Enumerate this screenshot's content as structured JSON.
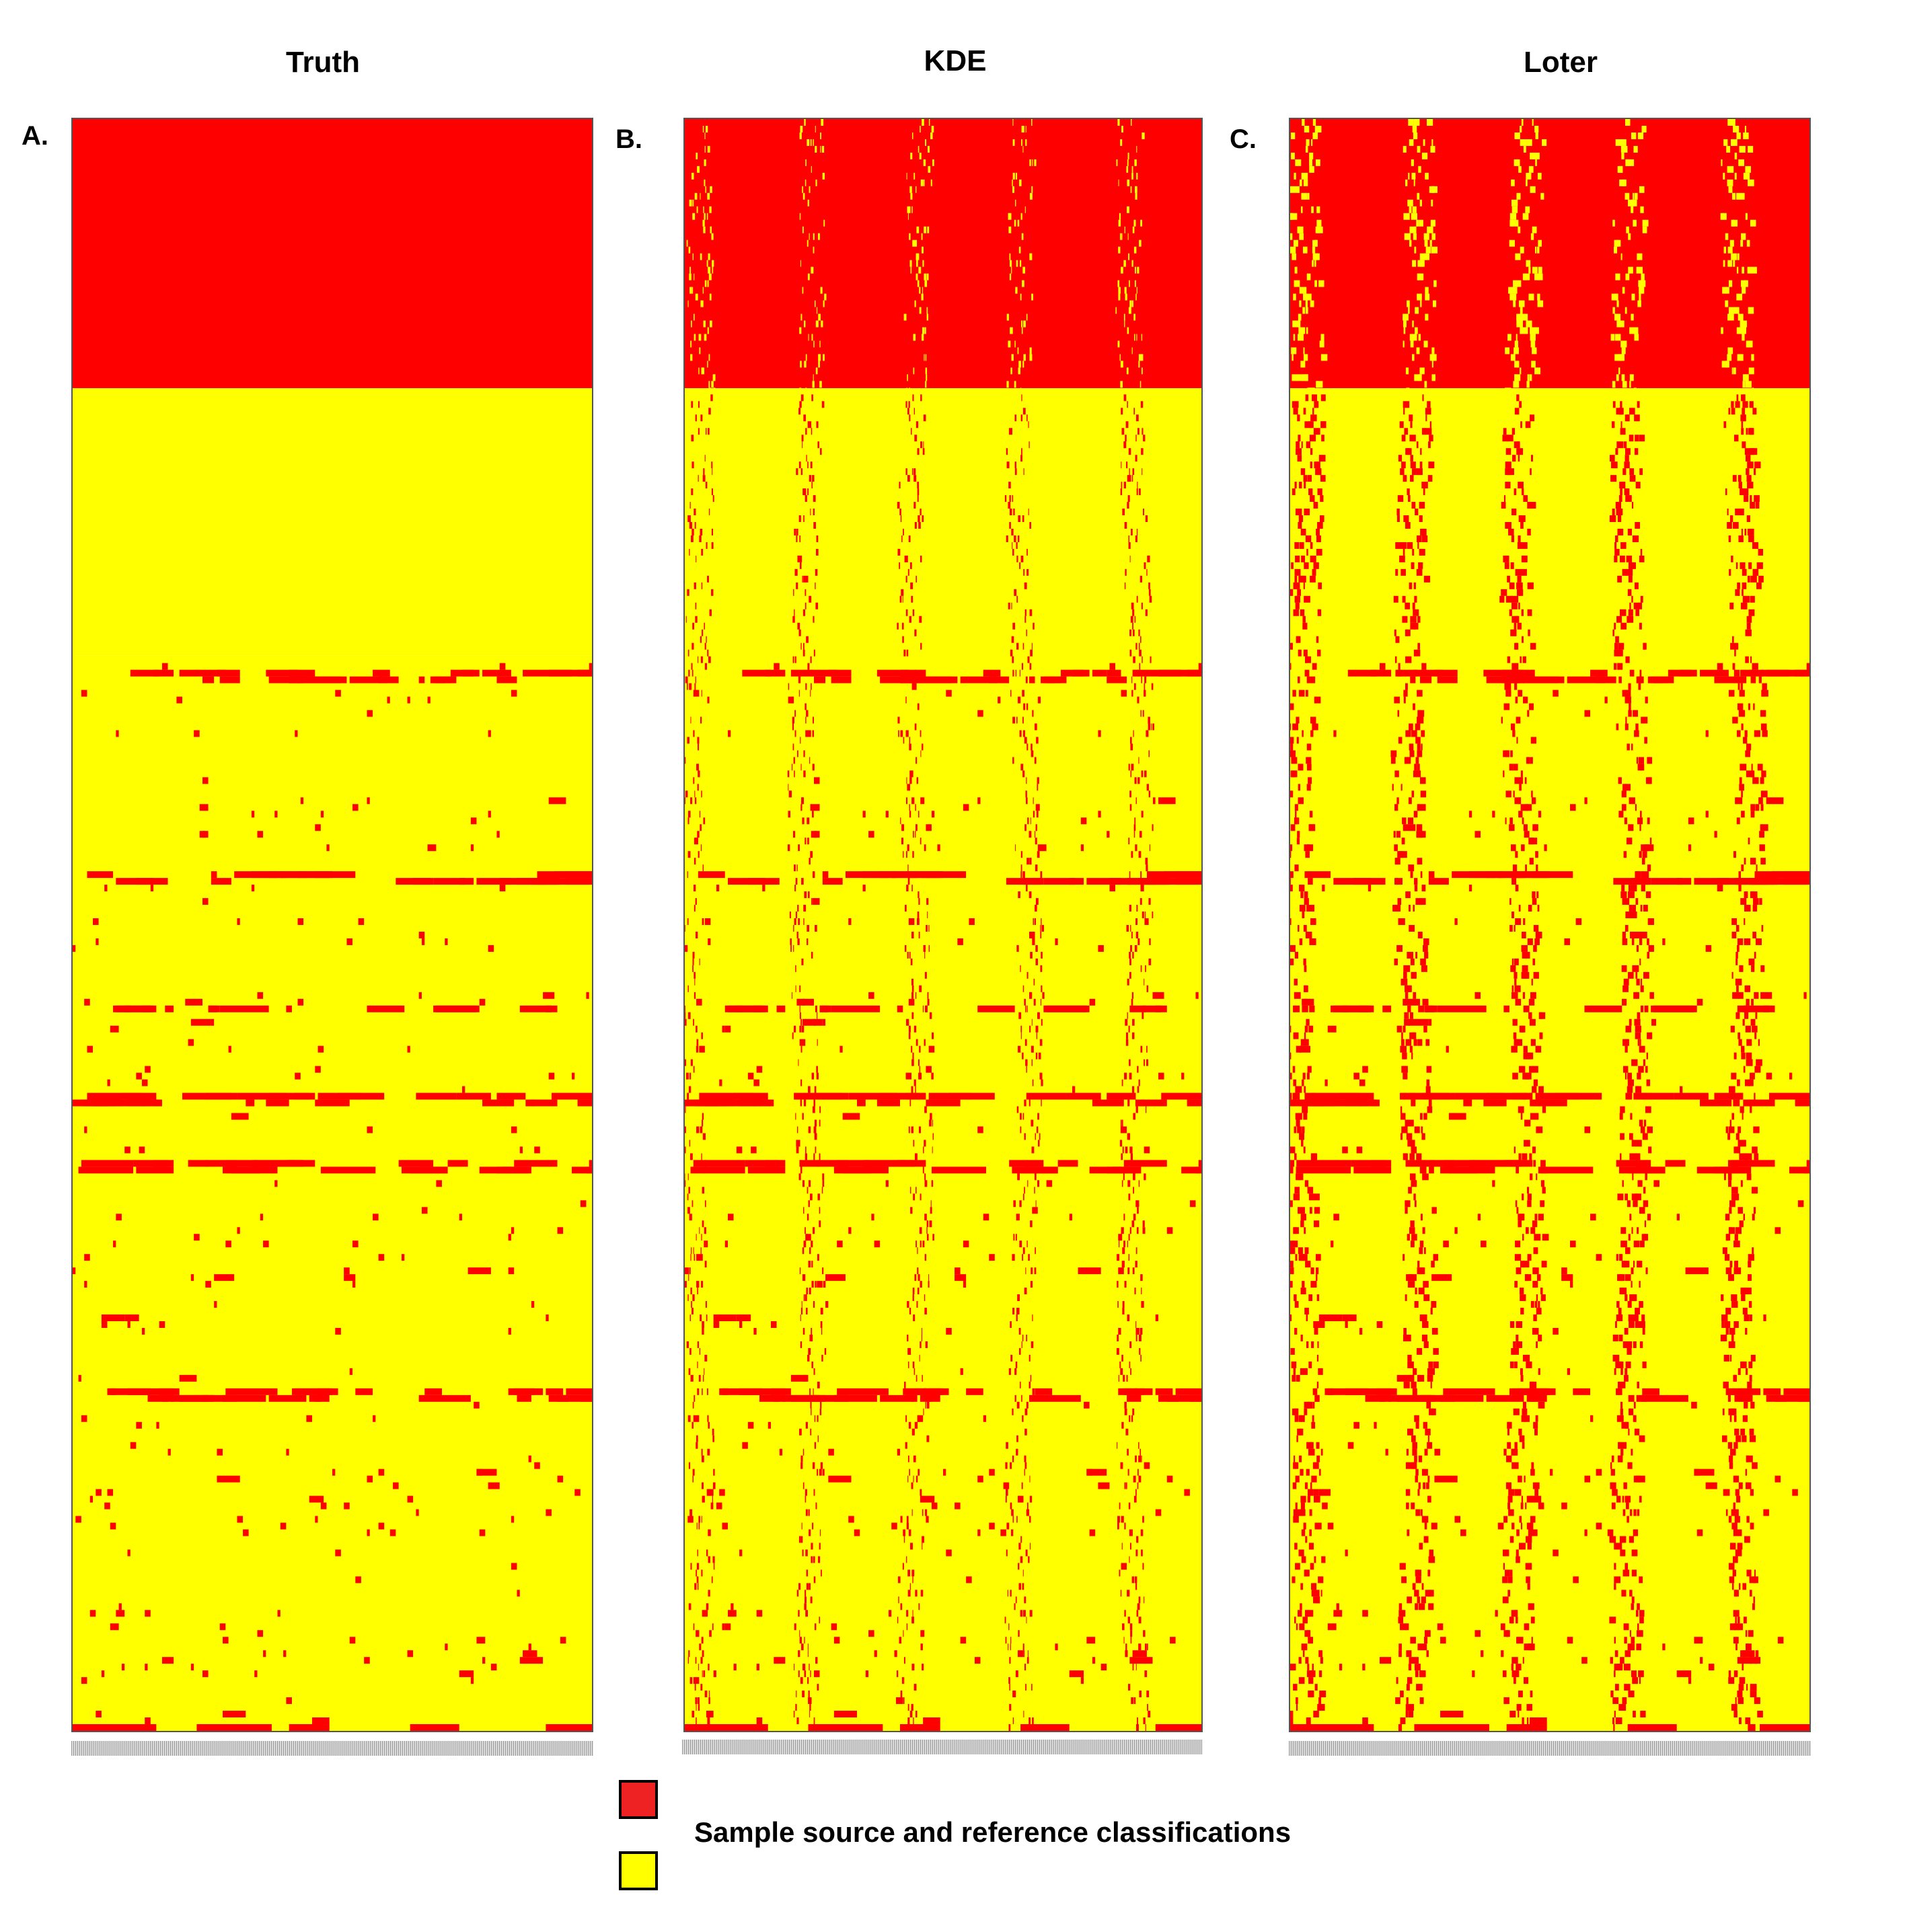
{
  "panels": [
    {
      "letter": "A.",
      "title": "Truth"
    },
    {
      "letter": "B.",
      "title": "KDE"
    },
    {
      "letter": "C.",
      "title": "Loter"
    }
  ],
  "legend": {
    "label": "Sample source and reference classifications",
    "swatches": [
      {
        "name": "red-class",
        "color": "#ee2222"
      },
      {
        "name": "yellow-class",
        "color": "#ffff00"
      }
    ]
  },
  "chart_data": [
    {
      "type": "heatmap",
      "title": "Truth",
      "xlabel": "",
      "ylabel": "",
      "colors": {
        "source": "#ff0000",
        "reference": "#ffff00"
      },
      "blocks": [
        {
          "rows_fraction": [
            0.0,
            0.167
          ],
          "value": "source"
        },
        {
          "rows_fraction": [
            0.167,
            0.333
          ],
          "value": "reference"
        },
        {
          "rows_fraction": [
            0.333,
            1.0
          ],
          "value": "mixed"
        }
      ],
      "grid": false
    },
    {
      "type": "heatmap",
      "title": "KDE",
      "xlabel": "",
      "ylabel": "",
      "colors": {
        "source": "#ff0000",
        "reference": "#ffff00"
      },
      "blocks": [
        {
          "rows_fraction": [
            0.0,
            0.167
          ],
          "value": "source"
        },
        {
          "rows_fraction": [
            0.167,
            1.0
          ],
          "value": "mixed"
        }
      ],
      "grid": false
    },
    {
      "type": "heatmap",
      "title": "Loter",
      "xlabel": "",
      "ylabel": "",
      "colors": {
        "source": "#ff0000",
        "reference": "#ffff00"
      },
      "blocks": [
        {
          "rows_fraction": [
            0.0,
            0.167
          ],
          "value": "source"
        },
        {
          "rows_fraction": [
            0.167,
            1.0
          ],
          "value": "mixed"
        }
      ],
      "grid": false
    }
  ]
}
